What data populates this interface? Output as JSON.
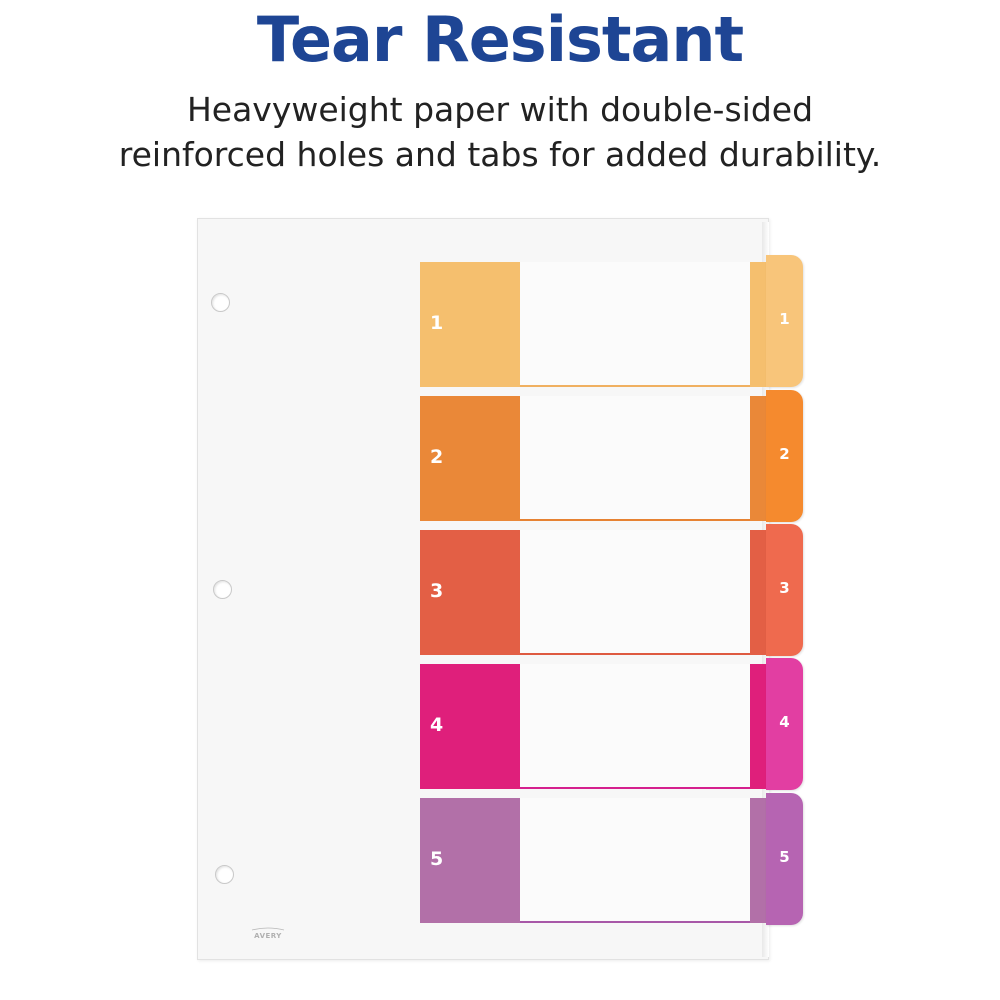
{
  "headline": "Tear Resistant",
  "subheadline": {
    "line1": "Heavyweight paper with double-sided",
    "line2": "reinforced holes and tabs for added durability."
  },
  "divider": {
    "logo_text": "AVERY",
    "tabs": [
      {
        "number": "1",
        "color": "#f5bf6e",
        "tab_color": "#f8c57a",
        "line_color": "#f0b060"
      },
      {
        "number": "2",
        "color": "#ea8838",
        "tab_color": "#f58a2e",
        "line_color": "#e68232"
      },
      {
        "number": "3",
        "color": "#e35f45",
        "tab_color": "#ef6a4e",
        "line_color": "#de5a40"
      },
      {
        "number": "4",
        "color": "#df1f7b",
        "tab_color": "#e23ea2",
        "line_color": "#d5208e"
      },
      {
        "number": "5",
        "color": "#b270a8",
        "tab_color": "#b664b2",
        "line_color": "#a858a8"
      }
    ]
  }
}
